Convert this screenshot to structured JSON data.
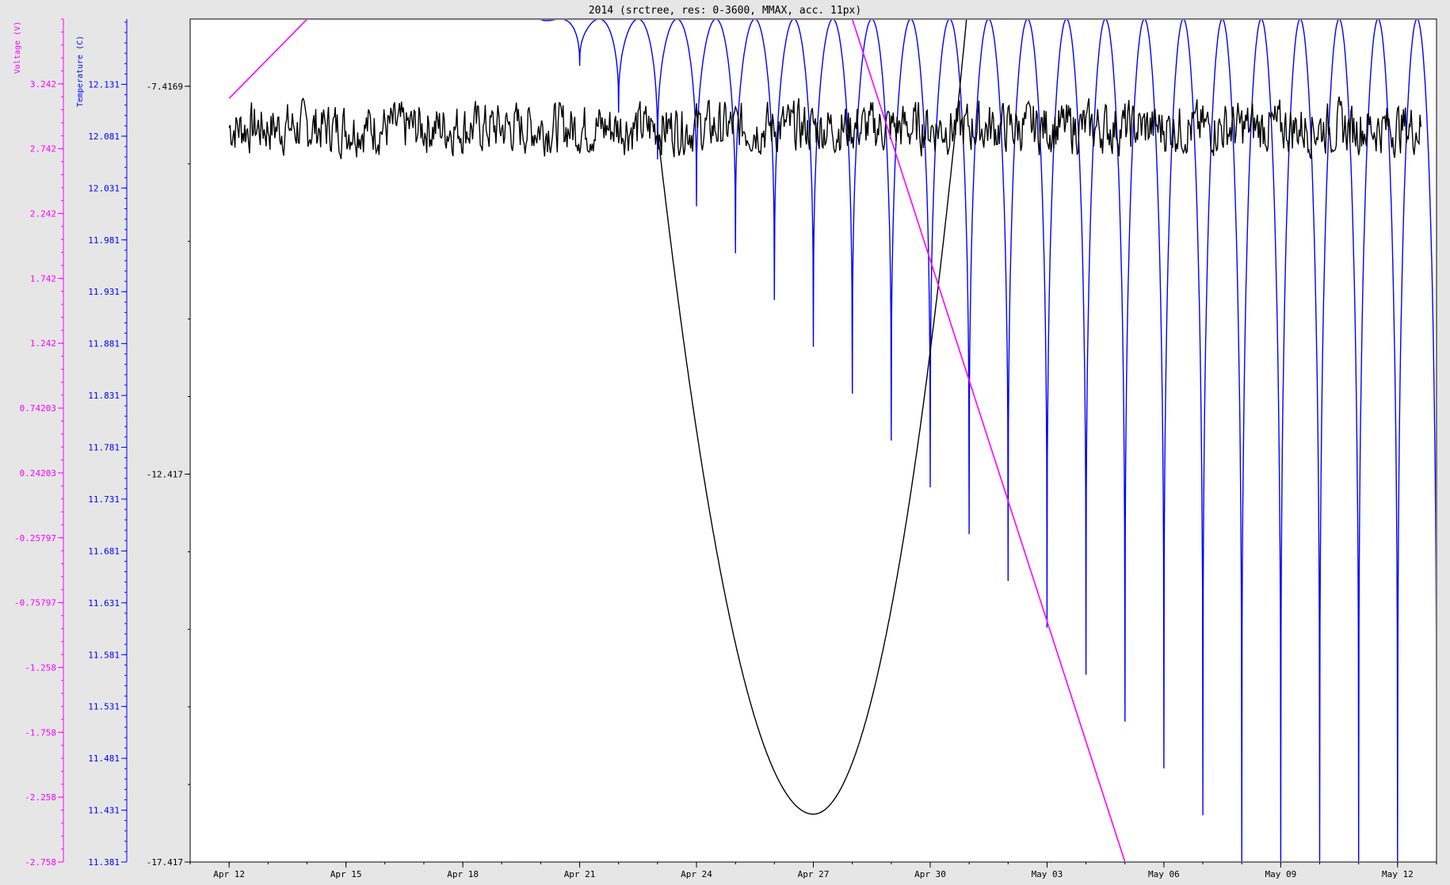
{
  "chart_data": {
    "type": "line",
    "title": "2014 (srctree, res: 0-3600, MMAX, acc. 11px)",
    "x_axis": {
      "ticks": [
        "Apr 12",
        "Apr 15",
        "Apr 18",
        "Apr 21",
        "Apr 24",
        "Apr 27",
        "Apr 30",
        "May 03",
        "May 06",
        "May 09",
        "May 12"
      ],
      "range": [
        "2014-04-11",
        "2014-05-13"
      ]
    },
    "y_axes": [
      {
        "label": "Voltage (V)",
        "color": "#ff00ff",
        "ticks": [
          "3.242",
          "2.742",
          "2.242",
          "1.742",
          "1.242",
          "0.74203",
          "0.24203",
          "-0.25797",
          "-0.75797",
          "-1.258",
          "-1.758",
          "-2.258",
          "-2.758"
        ],
        "range": [
          -2.758,
          3.742
        ]
      },
      {
        "label": "Temperature (C)",
        "color": "#0000ff",
        "ticks": [
          "12.131",
          "12.081",
          "12.031",
          "11.981",
          "11.931",
          "11.881",
          "11.831",
          "11.781",
          "11.731",
          "11.681",
          "11.631",
          "11.581",
          "11.531",
          "11.481",
          "11.431",
          "11.381"
        ],
        "range": [
          11.381,
          12.194
        ]
      },
      {
        "label": "",
        "color": "#000000",
        "ticks": [
          "-7.4169",
          "-12.417",
          "-17.417"
        ],
        "range": [
          -17.417,
          -6.55
        ]
      }
    ],
    "grid": false,
    "legend": "none",
    "series": [
      {
        "axis": "Voltage (V)",
        "color": "#ff00ff",
        "shape": "linear decline",
        "points": [
          [
            "2014-04-12",
            3.13
          ],
          [
            "2014-04-14",
            3.74
          ],
          [
            "2014-04-28",
            3.74
          ],
          [
            "2014-05-05",
            -2.758
          ]
        ]
      },
      {
        "axis": "Temperature (C)",
        "color": "#0000ff",
        "shape": "daily oscillation, upper bound ~12.194, daily minimum descending",
        "start": "2014-04-20",
        "end": "2014-05-13",
        "upper": 12.194,
        "minima": [
          [
            "2014-04-20",
            12.194
          ],
          [
            "2014-05-08",
            11.381
          ],
          [
            "2014-05-13",
            11.381
          ]
        ]
      },
      {
        "axis": "unlabeled",
        "color": "#000000",
        "shape": "noisy band near -7.5 to -8.4 with a parabolic dip",
        "band": [
          -8.4,
          -7.5
        ],
        "dip": {
          "start": "2014-04-23",
          "bottom": [
            "2014-04-27",
            -16.8
          ],
          "end": "2014-05-01"
        }
      }
    ]
  }
}
